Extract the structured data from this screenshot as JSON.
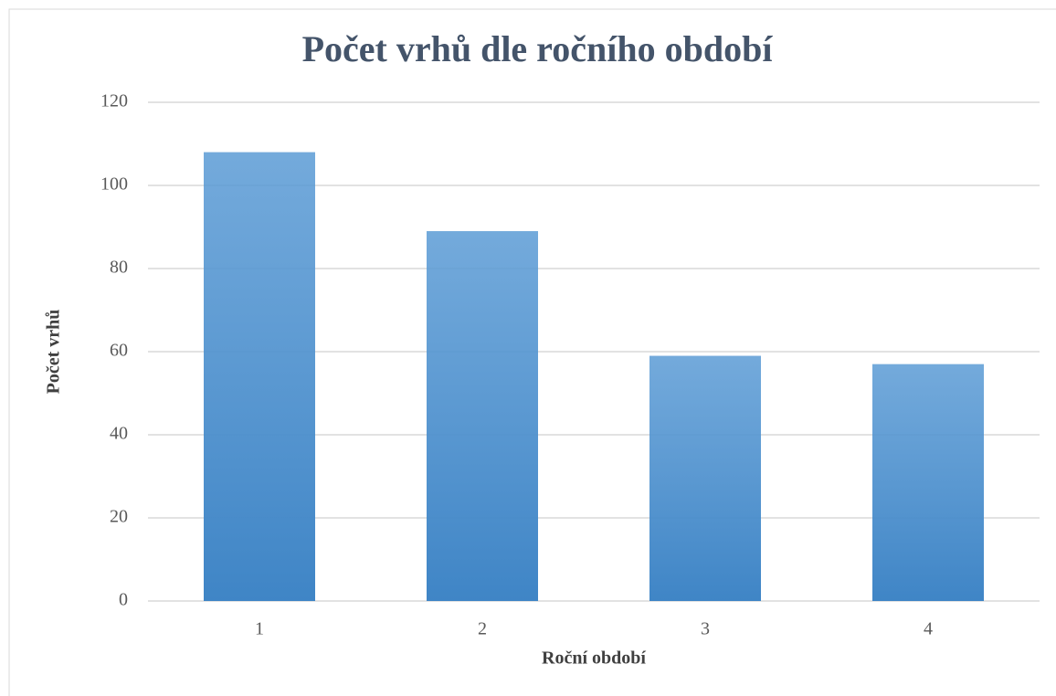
{
  "chart_data": {
    "type": "bar",
    "title": "Počet vrhů dle ročního období",
    "x_label": "Roční období",
    "y_label": "Počet vrhů",
    "categories": [
      "1",
      "2",
      "3",
      "4"
    ],
    "values": [
      108,
      89,
      59,
      57
    ],
    "color": "#5b9bd5",
    "ylim": [
      0,
      120
    ],
    "yticks": [
      0,
      20,
      40,
      60,
      80,
      100,
      120
    ],
    "grid": true
  }
}
